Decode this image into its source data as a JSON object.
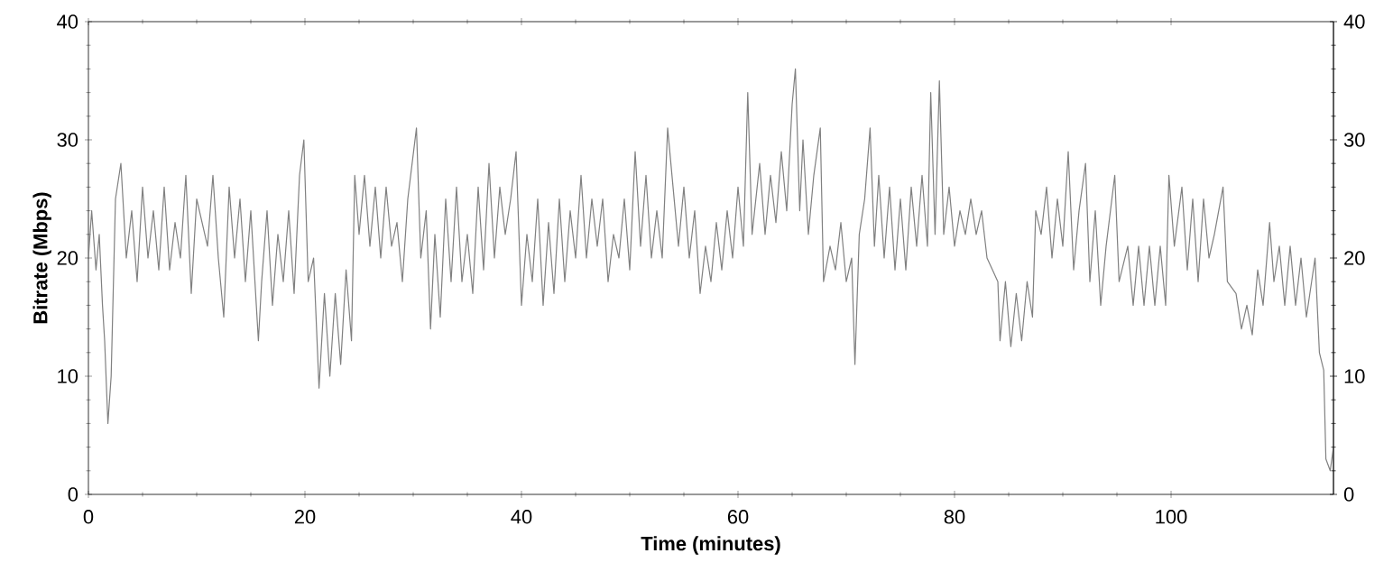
{
  "chart_data": {
    "type": "line",
    "xlabel": "Time (minutes)",
    "ylabel": "Bitrate (Mbps)",
    "xlim": [
      0,
      115
    ],
    "xticks": [
      0,
      20,
      40,
      60,
      80,
      100
    ],
    "ylim": [
      0,
      40
    ],
    "yticks": [
      0,
      10,
      20,
      30,
      40
    ],
    "y2lim": [
      0,
      40
    ],
    "y2ticks": [
      0,
      10,
      20,
      30,
      40
    ],
    "marker": "none",
    "line_style": "solid",
    "series": [
      {
        "color": "#808080",
        "x": [
          0,
          0.3,
          0.7,
          1,
          1.3,
          1.5,
          1.8,
          2.1,
          2.5,
          3,
          3.5,
          4,
          4.5,
          5,
          5.5,
          6,
          6.5,
          7,
          7.5,
          8,
          8.5,
          9,
          9.5,
          10,
          11,
          11.5,
          12,
          12.5,
          13,
          13.5,
          14,
          14.5,
          15,
          15.7,
          16,
          16.5,
          17,
          17.5,
          18,
          18.5,
          19,
          19.5,
          19.9,
          20.3,
          20.8,
          21.3,
          21.8,
          22.3,
          22.8,
          23.3,
          23.8,
          24.3,
          24.6,
          25,
          25.5,
          26,
          26.5,
          27,
          27.5,
          28,
          28.5,
          29,
          29.5,
          30.3,
          30.7,
          31.2,
          31.6,
          32,
          32.5,
          33,
          33.5,
          34,
          34.5,
          35,
          35.5,
          36,
          36.5,
          37,
          37.5,
          38,
          38.5,
          39,
          39.5,
          40,
          40.5,
          41,
          41.5,
          42,
          42.5,
          43,
          43.5,
          44,
          44.5,
          45,
          45.5,
          46,
          46.5,
          47,
          47.5,
          48,
          48.5,
          49,
          49.5,
          50,
          50.5,
          51,
          51.5,
          52,
          52.5,
          53,
          53.5,
          54.5,
          55,
          55.5,
          56,
          56.5,
          57,
          57.5,
          58,
          58.5,
          59,
          59.5,
          60,
          60.5,
          60.9,
          61.3,
          62,
          62.5,
          63,
          63.5,
          64,
          64.5,
          65,
          65.3,
          65.7,
          66,
          66.5,
          67,
          67.6,
          67.9,
          68.5,
          69,
          69.5,
          70,
          70.5,
          70.8,
          71.2,
          71.7,
          72.2,
          72.6,
          73,
          73.5,
          74,
          74.5,
          75,
          75.5,
          76,
          76.5,
          77,
          77.5,
          77.8,
          78.2,
          78.6,
          79,
          79.5,
          80,
          80.5,
          81,
          81.5,
          82,
          82.5,
          83,
          83.5,
          84,
          84.2,
          84.7,
          85.2,
          85.7,
          86.2,
          86.7,
          87.2,
          87.5,
          88,
          88.5,
          89,
          89.5,
          90,
          90.5,
          91,
          91.5,
          92.1,
          92.5,
          93,
          93.5,
          94,
          94.8,
          95.2,
          96,
          96.5,
          97,
          97.5,
          98,
          98.5,
          99,
          99.5,
          99.8,
          100.3,
          101,
          101.5,
          102,
          102.5,
          103,
          103.5,
          104,
          104.8,
          105.2,
          106,
          106.5,
          107,
          107.5,
          108,
          108.5,
          109.1,
          109.5,
          110,
          110.5,
          111,
          111.5,
          112,
          112.5,
          113.3,
          113.7,
          114.1,
          114.3,
          114.7,
          115
        ],
        "values": [
          20,
          24,
          19,
          22,
          16,
          13,
          6,
          10,
          25,
          28,
          20,
          24,
          18,
          26,
          20,
          24,
          19,
          26,
          19,
          23,
          20,
          27,
          17,
          25,
          21,
          27,
          20,
          15,
          26,
          20,
          25,
          18,
          24,
          13,
          18,
          24,
          16,
          22,
          18,
          24,
          17,
          27,
          30,
          18,
          20,
          9,
          17,
          10,
          17,
          11,
          19,
          13,
          27,
          22,
          27,
          21,
          26,
          20,
          26,
          21,
          23,
          18,
          25,
          31,
          20,
          24,
          14,
          22,
          15,
          25,
          18,
          26,
          18,
          22,
          17,
          26,
          19,
          28,
          20,
          26,
          22,
          25,
          29,
          16,
          22,
          18,
          25,
          16,
          23,
          17,
          25,
          18,
          24,
          20,
          27,
          20,
          25,
          21,
          25,
          18,
          22,
          20,
          25,
          19,
          29,
          21,
          27,
          20,
          24,
          20,
          31,
          21,
          26,
          20,
          24,
          17,
          21,
          18,
          23,
          19,
          24,
          20,
          26,
          21,
          34,
          22,
          28,
          22,
          27,
          23,
          29,
          24,
          33,
          36,
          24,
          30,
          22,
          27,
          31,
          18,
          21,
          19,
          23,
          18,
          20,
          11,
          22,
          25,
          31,
          21,
          27,
          20,
          26,
          19,
          25,
          19,
          26,
          21,
          27,
          21,
          34,
          22,
          35,
          22,
          26,
          21,
          24,
          22,
          25,
          22,
          24,
          20,
          19,
          18,
          13,
          18,
          12.5,
          17,
          13,
          18,
          15,
          24,
          22,
          26,
          20,
          25,
          21,
          29,
          19,
          24,
          28,
          18,
          24,
          16,
          21,
          27,
          18,
          21,
          16,
          21,
          16,
          21,
          16,
          21,
          16,
          27,
          21,
          26,
          19,
          25,
          18,
          25,
          20,
          22,
          26,
          18,
          17,
          14,
          16,
          13.5,
          19,
          16,
          23,
          18,
          21,
          16,
          21,
          16,
          20,
          15,
          20,
          12,
          10.5,
          3,
          2,
          4
        ]
      }
    ]
  }
}
